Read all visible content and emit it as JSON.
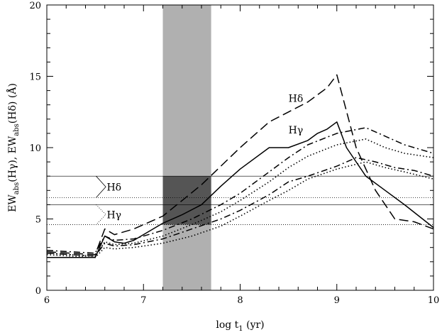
{
  "chart_data": {
    "type": "line",
    "xlabel": "log t",
    "xlabel_sub": "1",
    "xlabel_unit": " (yr)",
    "ylabel_parts": [
      "EW",
      "abs",
      "(Hγ), EW",
      "abs",
      "(Hδ) (Å)"
    ],
    "xlim": [
      6,
      10
    ],
    "ylim": [
      0,
      20
    ],
    "x_ticks": [
      "6",
      "7",
      "8",
      "9",
      "10"
    ],
    "y_ticks": [
      "0",
      "5",
      "10",
      "15",
      "20"
    ],
    "grid": false,
    "shaded_band": {
      "x": [
        7.2,
        7.7
      ],
      "color": "#b0b0b0"
    },
    "dark_region": {
      "x": [
        7.2,
        7.7
      ],
      "y": [
        4.6,
        8.0
      ],
      "color": "#555555"
    },
    "reference_lines": [
      {
        "y": 8.0,
        "style": "solid"
      },
      {
        "y": 6.0,
        "style": "solid"
      },
      {
        "y": 6.5,
        "style": "dotted"
      },
      {
        "y": 4.6,
        "style": "dotted"
      }
    ],
    "bracket_labels": [
      {
        "text": "Hδ",
        "y_top": 8.0,
        "y_bottom": 6.5,
        "style": "solid"
      },
      {
        "text": "Hγ",
        "y_top": 6.0,
        "y_bottom": 4.6,
        "style": "dotted"
      }
    ],
    "curve_labels": [
      {
        "text": "Hδ",
        "x": 8.5,
        "y": 13.2
      },
      {
        "text": "Hγ",
        "x": 8.5,
        "y": 11.0
      }
    ],
    "series": [
      {
        "style": "dashed",
        "x": [
          6.0,
          6.5,
          6.6,
          6.7,
          6.9,
          7.2,
          7.4,
          7.6,
          7.8,
          8.0,
          8.3,
          8.5,
          8.7,
          8.9,
          9.0,
          9.2,
          9.4,
          9.6,
          9.7,
          9.8,
          10.0
        ],
        "y": [
          2.7,
          2.5,
          4.3,
          3.9,
          4.3,
          5.2,
          6.3,
          7.4,
          8.7,
          10.0,
          11.8,
          12.5,
          13.2,
          14.2,
          15.1,
          10.0,
          7.0,
          5.0,
          4.9,
          4.8,
          4.3
        ]
      },
      {
        "style": "solid",
        "x": [
          6.0,
          6.5,
          6.6,
          6.7,
          6.8,
          6.9,
          7.2,
          7.4,
          7.6,
          7.8,
          8.0,
          8.3,
          8.5,
          8.7,
          8.8,
          8.9,
          9.0,
          9.1,
          9.3,
          9.5,
          9.7,
          10.0
        ],
        "y": [
          2.3,
          2.3,
          3.8,
          3.4,
          3.3,
          3.5,
          4.7,
          5.3,
          6.0,
          7.3,
          8.5,
          10.0,
          10.0,
          10.5,
          11.0,
          11.3,
          11.8,
          10.0,
          8.0,
          7.0,
          6.0,
          4.4
        ]
      },
      {
        "style": "dashdot",
        "x": [
          6.0,
          6.5,
          6.6,
          6.7,
          6.9,
          7.2,
          7.5,
          7.8,
          8.0,
          8.3,
          8.5,
          8.7,
          9.0,
          9.3,
          9.5,
          9.7,
          10.0
        ],
        "y": [
          2.8,
          2.6,
          3.8,
          3.5,
          3.6,
          4.2,
          5.0,
          6.0,
          6.8,
          8.3,
          9.3,
          10.2,
          11.0,
          11.4,
          10.8,
          10.2,
          9.6
        ]
      },
      {
        "style": "dotted",
        "x": [
          6.0,
          6.5,
          6.6,
          6.7,
          6.9,
          7.2,
          7.5,
          7.8,
          8.0,
          8.3,
          8.5,
          8.7,
          9.0,
          9.3,
          9.5,
          9.7,
          10.0
        ],
        "y": [
          2.6,
          2.4,
          3.4,
          3.2,
          3.3,
          3.8,
          4.6,
          5.5,
          6.3,
          7.6,
          8.6,
          9.4,
          10.2,
          10.6,
          10.0,
          9.6,
          9.3
        ]
      },
      {
        "style": "dashdot",
        "x": [
          6.0,
          6.5,
          6.6,
          6.7,
          6.9,
          7.2,
          7.5,
          7.8,
          8.0,
          8.3,
          8.5,
          8.7,
          9.0,
          9.2,
          9.4,
          9.6,
          9.8,
          10.0
        ],
        "y": [
          2.6,
          2.4,
          3.3,
          3.1,
          3.2,
          3.6,
          4.3,
          5.0,
          5.6,
          6.7,
          7.6,
          8.0,
          8.7,
          9.3,
          9.0,
          8.6,
          8.4,
          8.0
        ]
      },
      {
        "style": "dotted",
        "x": [
          6.0,
          6.5,
          6.6,
          6.7,
          6.9,
          7.2,
          7.5,
          7.8,
          8.0,
          8.3,
          8.5,
          8.7,
          9.0,
          9.3,
          9.5,
          9.7,
          10.0
        ],
        "y": [
          2.5,
          2.3,
          3.0,
          2.9,
          3.0,
          3.3,
          3.8,
          4.5,
          5.2,
          6.3,
          7.0,
          7.8,
          8.5,
          9.0,
          8.6,
          8.3,
          7.8
        ]
      }
    ]
  }
}
